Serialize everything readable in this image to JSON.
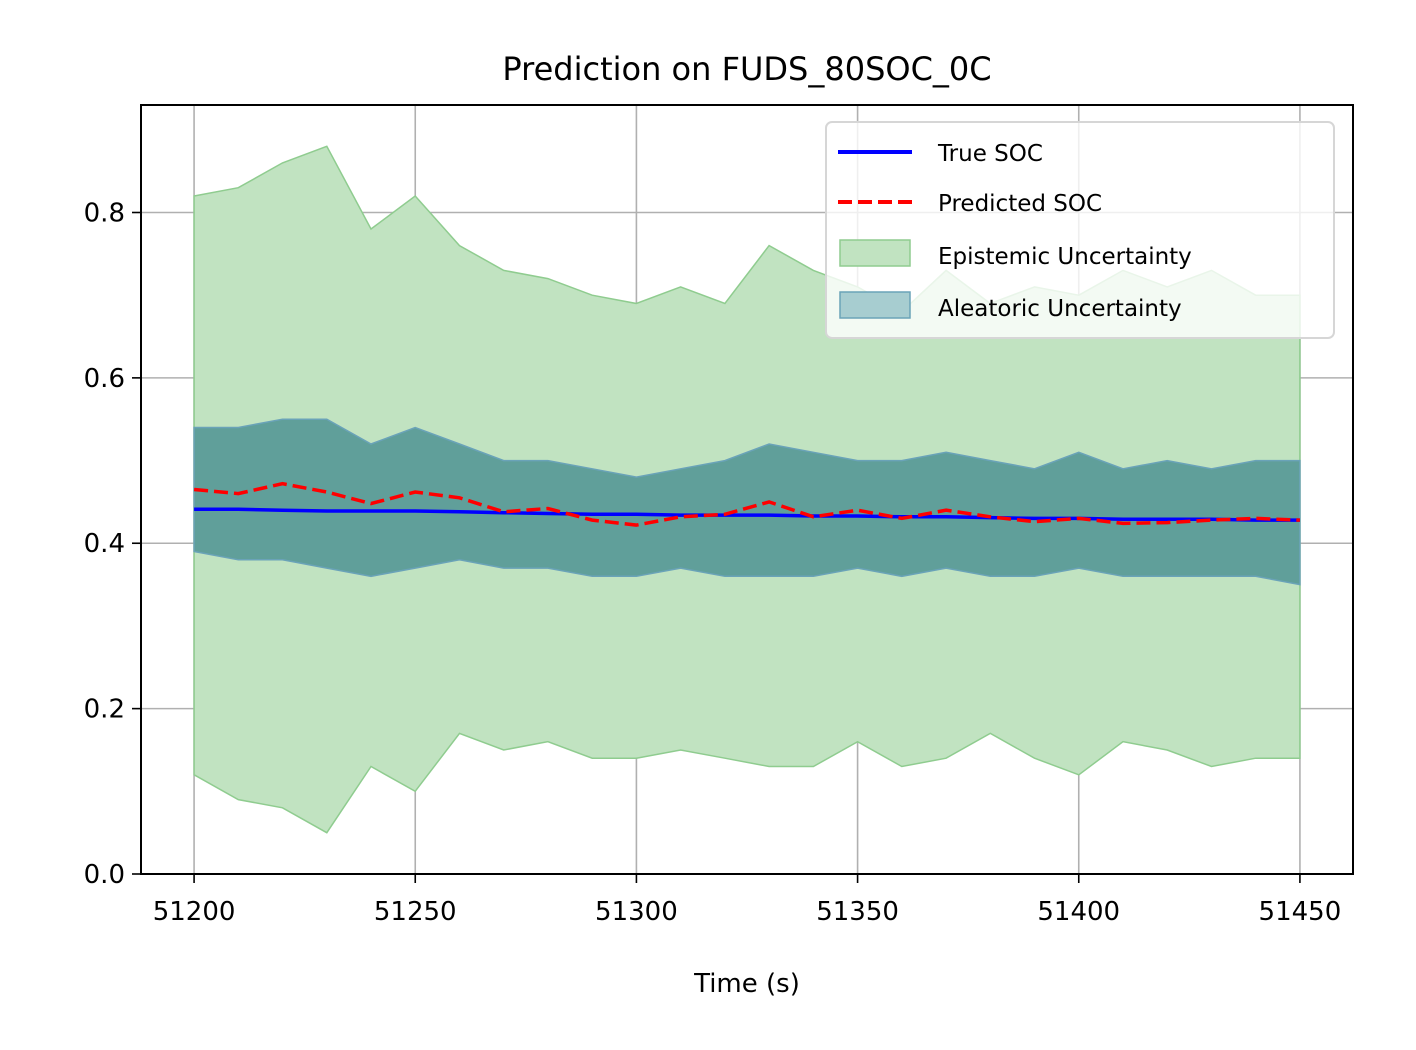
{
  "chart_data": {
    "type": "line",
    "title": "Prediction on FUDS_80SOC_0C",
    "xlabel": "Time (s)",
    "ylabel": "",
    "xlim": [
      51188,
      51462
    ],
    "ylim": [
      0.0,
      0.93
    ],
    "x_ticks": [
      51200,
      51250,
      51300,
      51350,
      51400,
      51450
    ],
    "x_tick_labels": [
      "51200",
      "51250",
      "51300",
      "51350",
      "51400",
      "51450"
    ],
    "y_ticks": [
      0.0,
      0.2,
      0.4,
      0.6,
      0.8
    ],
    "y_tick_labels": [
      "0.0",
      "0.2",
      "0.4",
      "0.6",
      "0.8"
    ],
    "grid": true,
    "legend_position": "top-right",
    "colors": {
      "true_soc": "#0000ff",
      "predicted_soc": "#ff0000",
      "epistemic_fill": "#c1e3c1",
      "epistemic_edge": "#8fcc8f",
      "aleatoric_fill": "#4f9393",
      "aleatoric_edge": "#6aa3b8",
      "grid": "#b0b0b0"
    },
    "x": [
      51200,
      51210,
      51220,
      51230,
      51240,
      51250,
      51260,
      51270,
      51280,
      51290,
      51300,
      51310,
      51320,
      51330,
      51340,
      51350,
      51360,
      51370,
      51380,
      51390,
      51400,
      51410,
      51420,
      51430,
      51440,
      51450
    ],
    "series": [
      {
        "name": "True SOC",
        "style": "solid",
        "values": [
          0.441,
          0.441,
          0.44,
          0.439,
          0.439,
          0.439,
          0.438,
          0.437,
          0.436,
          0.435,
          0.435,
          0.434,
          0.434,
          0.434,
          0.433,
          0.433,
          0.432,
          0.432,
          0.431,
          0.43,
          0.43,
          0.429,
          0.429,
          0.429,
          0.428,
          0.428
        ]
      },
      {
        "name": "Predicted SOC",
        "style": "dashed",
        "values": [
          0.465,
          0.46,
          0.472,
          0.462,
          0.448,
          0.462,
          0.455,
          0.438,
          0.442,
          0.428,
          0.422,
          0.432,
          0.435,
          0.45,
          0.432,
          0.44,
          0.43,
          0.44,
          0.432,
          0.426,
          0.43,
          0.424,
          0.425,
          0.428,
          0.43,
          0.428
        ]
      }
    ],
    "bands": [
      {
        "name": "Epistemic Uncertainty",
        "upper": [
          0.82,
          0.83,
          0.86,
          0.88,
          0.78,
          0.82,
          0.76,
          0.73,
          0.72,
          0.7,
          0.69,
          0.71,
          0.69,
          0.76,
          0.73,
          0.71,
          0.68,
          0.73,
          0.69,
          0.71,
          0.7,
          0.73,
          0.71,
          0.73,
          0.7,
          0.7
        ],
        "lower": [
          0.12,
          0.09,
          0.08,
          0.05,
          0.13,
          0.1,
          0.17,
          0.15,
          0.16,
          0.14,
          0.14,
          0.15,
          0.14,
          0.13,
          0.13,
          0.16,
          0.13,
          0.14,
          0.17,
          0.14,
          0.12,
          0.16,
          0.15,
          0.13,
          0.14,
          0.14
        ]
      },
      {
        "name": "Aleatoric Uncertainty",
        "upper": [
          0.54,
          0.54,
          0.55,
          0.55,
          0.52,
          0.54,
          0.52,
          0.5,
          0.5,
          0.49,
          0.48,
          0.49,
          0.5,
          0.52,
          0.51,
          0.5,
          0.5,
          0.51,
          0.5,
          0.49,
          0.51,
          0.49,
          0.5,
          0.49,
          0.5,
          0.5
        ],
        "lower": [
          0.39,
          0.38,
          0.38,
          0.37,
          0.36,
          0.37,
          0.38,
          0.37,
          0.37,
          0.36,
          0.36,
          0.37,
          0.36,
          0.36,
          0.36,
          0.37,
          0.36,
          0.37,
          0.36,
          0.36,
          0.37,
          0.36,
          0.36,
          0.36,
          0.36,
          0.35
        ]
      }
    ],
    "legend": [
      "True SOC",
      "Predicted SOC",
      "Epistemic Uncertainty",
      "Aleatoric Uncertainty"
    ]
  }
}
